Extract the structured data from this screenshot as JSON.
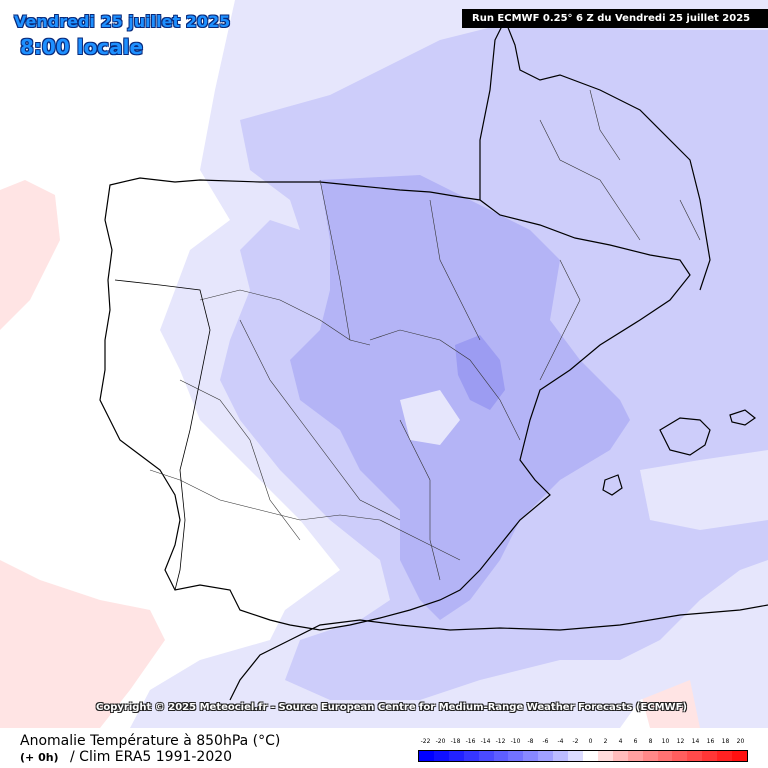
{
  "header": {
    "date": "Vendredi 25 juillet 2025",
    "time": "8:00 locale",
    "run": "Run ECMWF 0.25° 6 Z du Vendredi 25 juillet 2025"
  },
  "copyright": "Copyright © 2025 Meteociel.fr - Source European Centre for Medium-Range Weather Forecasts (ECMWF)",
  "footer": {
    "title": "Anomalie Température à 850hPa (°C)",
    "step": "(+ 0h)",
    "clim": "/ Clim ERA5 1991-2020"
  },
  "legend": {
    "labels": [
      "-22",
      "-20",
      "-18",
      "-16",
      "-14",
      "-12",
      "-10",
      "-8",
      "-6",
      "-4",
      "-2",
      "0",
      "2",
      "4",
      "6",
      "8",
      "10",
      "12",
      "14",
      "16",
      "18",
      "20"
    ],
    "colors": [
      "#0000ff",
      "#1010ff",
      "#2222ff",
      "#3636ff",
      "#4a4aff",
      "#5e5eff",
      "#7272ff",
      "#8888ff",
      "#a0a0ff",
      "#bcbcff",
      "#dcdcff",
      "#ffffff",
      "#ffdcdc",
      "#ffbcbc",
      "#ffa0a0",
      "#ff8888",
      "#ff7272",
      "#ff5e5e",
      "#ff4a4a",
      "#ff3636",
      "#ff2222",
      "#ff1010"
    ]
  },
  "map": {
    "colors": {
      "neutral": "#ffffff",
      "warm1": "#ffe4e4",
      "cool1": "#e6e6fc",
      "cool2": "#cdcdfa",
      "cool3": "#b4b4f6",
      "cool4": "#9c9cf2"
    }
  }
}
